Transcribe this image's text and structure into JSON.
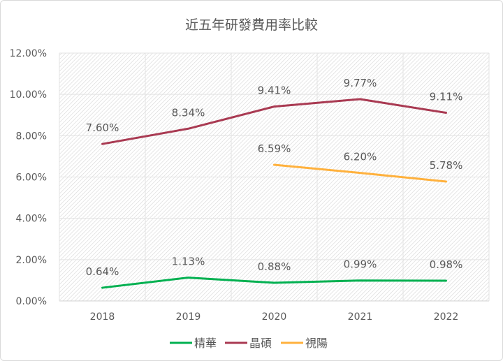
{
  "chart_data": {
    "type": "line",
    "title": "近五年研發費用率比較",
    "categories": [
      "2018",
      "2019",
      "2020",
      "2021",
      "2022"
    ],
    "ylim": [
      0,
      12
    ],
    "yticks": [
      "0.00%",
      "2.00%",
      "4.00%",
      "6.00%",
      "8.00%",
      "10.00%",
      "12.00%"
    ],
    "grid": true,
    "legend_position": "bottom",
    "series": [
      {
        "name": "精華",
        "color": "#00B050",
        "values": [
          0.64,
          1.13,
          0.88,
          0.99,
          0.98
        ],
        "labels": [
          "0.64%",
          "1.13%",
          "0.88%",
          "0.99%",
          "0.98%"
        ]
      },
      {
        "name": "晶碩",
        "color": "#A93A52",
        "values": [
          7.6,
          8.34,
          9.41,
          9.77,
          9.11
        ],
        "labels": [
          "7.60%",
          "8.34%",
          "9.41%",
          "9.77%",
          "9.11%"
        ]
      },
      {
        "name": "視陽",
        "color": "#FFB13D",
        "values": [
          null,
          null,
          6.59,
          6.2,
          5.78
        ],
        "labels": [
          null,
          null,
          "6.59%",
          "6.20%",
          "5.78%"
        ]
      }
    ]
  }
}
